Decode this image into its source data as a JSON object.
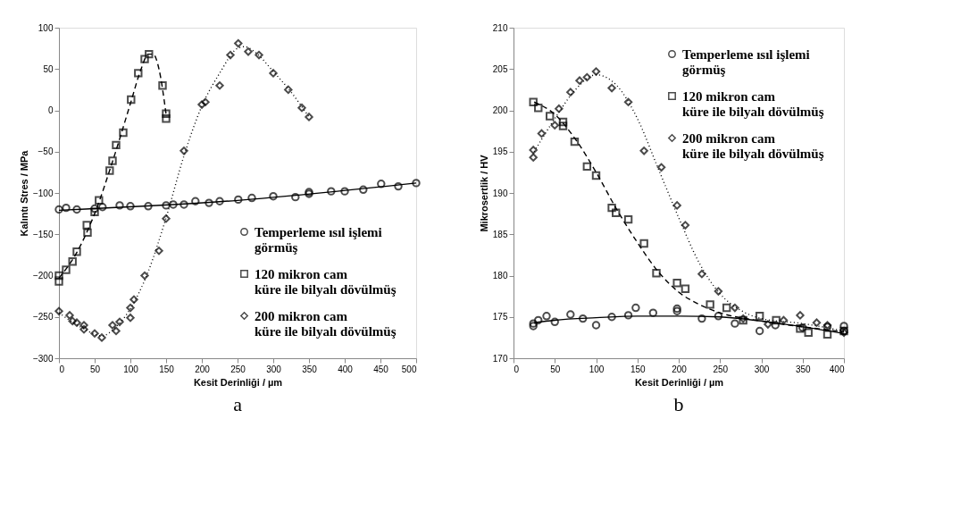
{
  "chart_data": [
    {
      "type": "scatter",
      "xlabel": "Kesit Derinliği / µm",
      "ylabel": "Kalıntı Stres / MPa",
      "xlim": [
        0,
        500
      ],
      "xticks": [
        0,
        50,
        100,
        150,
        200,
        250,
        300,
        350,
        400,
        450,
        500
      ],
      "ylim": [
        -300,
        100
      ],
      "yticks": [
        -300,
        -250,
        -200,
        -150,
        -100,
        -50,
        0,
        50,
        100
      ],
      "grid": false,
      "legend": "bottom right",
      "annotations": [
        "a"
      ],
      "series": [
        {
          "name": "Temperleme ısıl işlemi görmüş",
          "marker": "circle",
          "color": "#000000",
          "x": [
            0,
            10,
            25,
            50,
            61,
            85,
            100,
            125,
            150,
            160,
            175,
            191,
            210,
            225,
            251,
            270,
            300,
            331,
            350,
            350,
            381,
            400,
            426,
            451,
            475,
            500
          ],
          "values": [
            -120,
            -118,
            -120,
            -119,
            -117,
            -115,
            -116,
            -116,
            -115,
            -114,
            -114,
            -110,
            -112,
            -110,
            -108,
            -106,
            -104,
            -105,
            -99,
            -101,
            -98,
            -98,
            -96,
            -89,
            -92,
            -88
          ]
        },
        {
          "type": "line",
          "line_style": "solid",
          "color": "#000000",
          "x": [
            0,
            250,
            500
          ],
          "values": [
            -121,
            -109,
            -88
          ]
        },
        {
          "name": "120 mikron cam küre ile bilyalı dövülmüş",
          "marker": "square",
          "color": "#000000",
          "x": [
            0,
            0,
            10,
            19,
            25,
            39,
            40,
            50,
            56,
            71,
            75,
            80,
            90,
            101,
            111,
            120,
            126,
            145,
            150,
            150
          ],
          "values": [
            -200,
            -207,
            -193,
            -183,
            -171,
            -139,
            -148,
            -123,
            -109,
            -73,
            -61,
            -42,
            -27,
            13,
            45,
            62,
            68,
            30,
            -4,
            -10
          ]
        },
        {
          "type": "line",
          "line_style": "dashed",
          "color": "#000000",
          "x": [
            0,
            25,
            50,
            75,
            100,
            115,
            125,
            132,
            140,
            150
          ],
          "values": [
            -203,
            -172,
            -125,
            -62,
            8,
            50,
            68,
            68,
            50,
            -5
          ]
        },
        {
          "name": "200 mikron cam küre ile bilyalı dövülmüş",
          "marker": "diamond",
          "color": "#000000",
          "x": [
            0,
            15,
            19,
            25,
            35,
            35,
            50,
            60,
            75,
            80,
            85,
            100,
            100,
            105,
            120,
            140,
            150,
            175,
            200,
            205,
            225,
            240,
            251,
            265,
            280,
            300,
            321,
            340,
            350
          ],
          "values": [
            -243,
            -248,
            -255,
            -257,
            -260,
            -265,
            -270,
            -275,
            -260,
            -267,
            -256,
            -251,
            -239,
            -229,
            -200,
            -170,
            -131,
            -49,
            7,
            10,
            30,
            67,
            81,
            71,
            67,
            45,
            25,
            3,
            -8
          ]
        },
        {
          "type": "line",
          "line_style": "dotted",
          "color": "#000000",
          "x": [
            0,
            30,
            60,
            80,
            100,
            125,
            150,
            175,
            200,
            225,
            250,
            260,
            275,
            300,
            325,
            350
          ],
          "values": [
            -245,
            -262,
            -273,
            -262,
            -240,
            -195,
            -130,
            -55,
            5,
            45,
            75,
            77,
            70,
            47,
            22,
            -8
          ]
        }
      ]
    },
    {
      "type": "scatter",
      "xlabel": "Kesit Derinliği / µm",
      "ylabel": "Mikrosertlik / HV",
      "xlim": [
        0,
        400
      ],
      "xticks": [
        0,
        50,
        100,
        150,
        200,
        250,
        300,
        350,
        400
      ],
      "ylim": [
        170,
        210
      ],
      "yticks": [
        170,
        175,
        180,
        185,
        190,
        195,
        200,
        205,
        210
      ],
      "grid": false,
      "legend": "top right",
      "annotations": [
        "b"
      ],
      "series": [
        {
          "name": "Temperleme ısıl işlemi görmüş",
          "marker": "circle",
          "color": "#000000",
          "x": [
            24,
            24,
            30,
            40,
            50,
            69,
            84,
            100,
            119,
            139,
            148,
            169,
            198,
            198,
            228,
            248,
            268,
            298,
            317,
            350,
            380,
            400,
            400
          ],
          "values": [
            173.9,
            174.2,
            174.6,
            175.1,
            174.4,
            175.3,
            174.8,
            174.0,
            175.0,
            175.2,
            176.1,
            175.5,
            176.0,
            175.7,
            174.8,
            175.1,
            174.2,
            173.3,
            174.0,
            173.7,
            173.8,
            173.3,
            173.9
          ]
        },
        {
          "type": "line",
          "line_style": "solid",
          "color": "#000000",
          "x": [
            25,
            50,
            100,
            150,
            200,
            250,
            300,
            350,
            400
          ],
          "values": [
            174.3,
            174.6,
            174.9,
            175.1,
            175.1,
            175.0,
            174.5,
            173.8,
            173.0
          ]
        },
        {
          "name": "120 mikron cam küre ile bilyalı dövülmüş",
          "marker": "square",
          "color": "#000000",
          "x": [
            24,
            30,
            44,
            60,
            60,
            74,
            89,
            100,
            119,
            124,
            139,
            158,
            173,
            198,
            208,
            238,
            258,
            278,
            298,
            318,
            347,
            357,
            380,
            400
          ],
          "values": [
            201.0,
            200.3,
            199.3,
            198.6,
            198.1,
            196.2,
            193.2,
            192.1,
            188.2,
            187.6,
            186.8,
            183.9,
            180.3,
            179.1,
            178.4,
            176.5,
            176.1,
            174.6,
            175.1,
            174.6,
            173.6,
            173.1,
            172.9,
            173.3
          ]
        },
        {
          "type": "line",
          "line_style": "dashed",
          "color": "#000000",
          "x": [
            25,
            50,
            75,
            100,
            125,
            150,
            175,
            200,
            225,
            250,
            300,
            350,
            400
          ],
          "values": [
            201,
            199.5,
            196.5,
            192.5,
            188,
            184,
            180.5,
            178,
            176.5,
            175.5,
            174.5,
            173.8,
            173.2
          ]
        },
        {
          "name": "200 mikron cam küre ile bilyalı dövülmüş",
          "marker": "diamond",
          "color": "#000000",
          "x": [
            24,
            24,
            34,
            50,
            55,
            69,
            80,
            89,
            100,
            119,
            139,
            158,
            179,
            198,
            208,
            228,
            248,
            268,
            278,
            308,
            327,
            347,
            367,
            380,
            400
          ],
          "values": [
            194.3,
            195.2,
            197.2,
            198.2,
            200.2,
            202.2,
            203.6,
            204.0,
            204.7,
            202.7,
            201.0,
            195.1,
            193.1,
            188.5,
            186.1,
            180.2,
            178.1,
            176.1,
            174.8,
            174.1,
            174.6,
            175.2,
            174.3,
            174.0,
            173.1
          ]
        },
        {
          "type": "line",
          "line_style": "dotted",
          "color": "#000000",
          "x": [
            25,
            50,
            75,
            100,
            125,
            150,
            175,
            200,
            225,
            250,
            275,
            300,
            350,
            400
          ],
          "values": [
            195,
            199,
            202.5,
            204.3,
            203,
            199,
            193,
            187,
            181.5,
            177.8,
            175.8,
            174.8,
            174.2,
            173.3
          ]
        }
      ]
    }
  ]
}
